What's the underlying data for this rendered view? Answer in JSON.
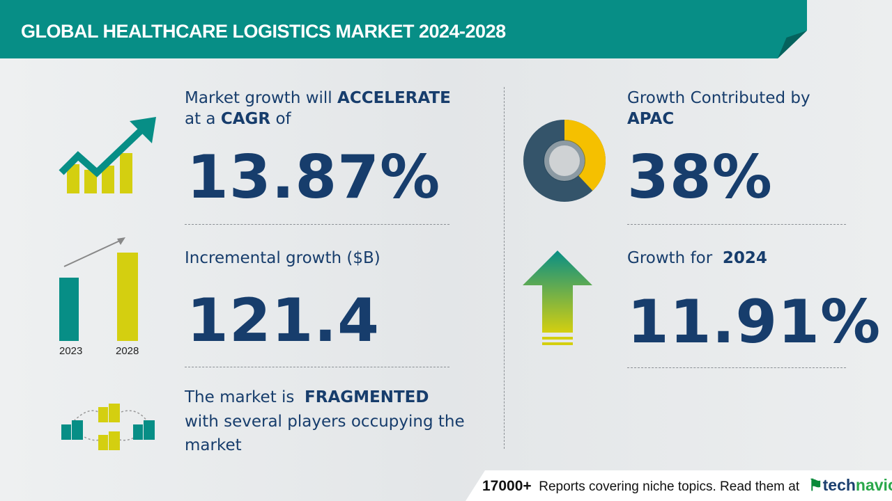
{
  "header": {
    "title": "GLOBAL HEALTHCARE LOGISTICS MARKET 2024-2028"
  },
  "colors": {
    "teal": "#078e86",
    "navy": "#173d6c",
    "yellow": "#d4cf10",
    "gold": "#f5c000",
    "dark_slate": "#34546a"
  },
  "cagr": {
    "line1_prefix": "Market growth will",
    "line1_bold": "ACCELERATE",
    "line2_prefix": "at a",
    "line2_bold": "CAGR",
    "line2_suffix": "of",
    "value": "13.87%",
    "icon": "trend-up-chart-icon"
  },
  "incremental": {
    "label": "Incremental growth ($B)",
    "value": "121.4",
    "icon": "bar-growth-icon",
    "years": [
      "2023",
      "2028"
    ]
  },
  "fragmentation": {
    "prefix": "The market is",
    "bold": "FRAGMENTED",
    "line2": "with several players occupying the",
    "line3": "market",
    "icon": "buildings-network-icon"
  },
  "region": {
    "label": "Growth Contributed by",
    "region": "APAC",
    "value": "38%",
    "share": 38,
    "icon": "donut-icon"
  },
  "yoy": {
    "label": "Growth for",
    "year": "2024",
    "value": "11.91%",
    "icon": "up-arrow-icon"
  },
  "footer": {
    "count": "17000+",
    "text": "Reports covering niche topics. Read them at",
    "brand_a": "tech",
    "brand_b": "navio"
  }
}
